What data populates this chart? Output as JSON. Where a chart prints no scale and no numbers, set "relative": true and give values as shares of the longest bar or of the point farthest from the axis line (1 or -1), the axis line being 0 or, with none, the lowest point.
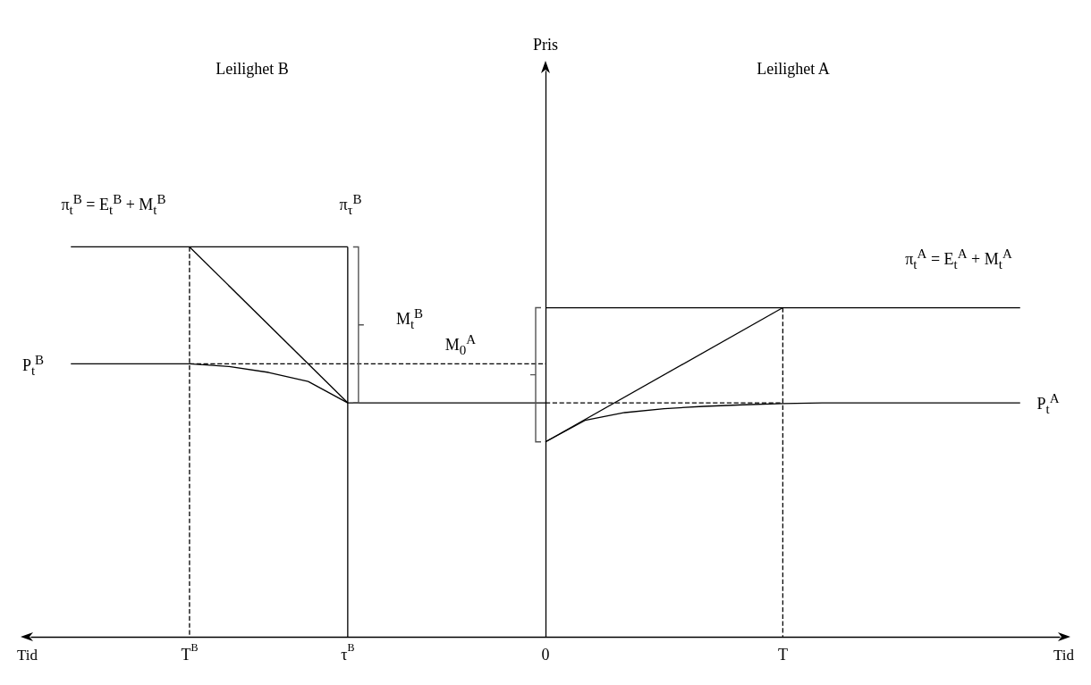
{
  "chart_data": {
    "type": "line",
    "relative": true,
    "xlabel": "Tid",
    "marker": "none",
    "categories": [
      null,
      null,
      null,
      null,
      "T$^{B}$",
      null,
      null,
      null,
      "τ$^{B}$",
      null,
      null,
      null,
      null,
      "0",
      null,
      null,
      null,
      null,
      null,
      "T",
      null,
      null,
      null,
      null,
      null,
      null,
      null
    ],
    "series": [
      {
        "color": "#000000",
        "line_style": "solid",
        "values": [
          null,
          1,
          1,
          1,
          1,
          1,
          1,
          1,
          1,
          null,
          null,
          null,
          null,
          null,
          null,
          null,
          null,
          null,
          null,
          null,
          null,
          null,
          null,
          null,
          null,
          null,
          null
        ]
      },
      {
        "color": "#000000",
        "line_style": "solid",
        "x": [
          "τ$^{B}$",
          "τ$^{B}$"
        ],
        "values": [
          1,
          0
        ]
      },
      {
        "color": "#000000",
        "line_style": "solid",
        "x": [
          "T$^{B}$",
          "τ$^{B}$"
        ],
        "values": [
          1,
          0.6
        ]
      },
      {
        "color": "#000000",
        "line_style": "dashed",
        "x": [
          "T$^{B}$",
          "T$^{B}$"
        ],
        "values": [
          1,
          0
        ]
      },
      {
        "color": "#000000",
        "line_style": "solid",
        "values": [
          null,
          0.7,
          0.7,
          0.7,
          0.7,
          0.693,
          0.678,
          0.655,
          0.6,
          0.6,
          0.6,
          0.6,
          0.6,
          0.6,
          null,
          null,
          null,
          null,
          null,
          null,
          null,
          null,
          null,
          null,
          null,
          null,
          null
        ]
      },
      {
        "color": "#000000",
        "line_style": "dashed",
        "values": [
          null,
          null,
          null,
          null,
          0.7,
          0.7,
          0.7,
          0.7,
          0.7,
          0.7,
          0.7,
          0.7,
          0.7,
          0.7,
          null,
          null,
          null,
          null,
          null,
          null,
          null,
          null,
          null,
          null,
          null,
          null,
          null
        ]
      },
      {
        "color": "#000000",
        "line_style": "solid",
        "values": [
          null,
          null,
          null,
          null,
          null,
          null,
          null,
          null,
          null,
          null,
          null,
          null,
          null,
          0.844,
          0.844,
          0.844,
          0.844,
          0.844,
          0.844,
          0.844,
          0.844,
          0.844,
          0.844,
          0.844,
          0.844,
          0.844,
          null
        ]
      },
      {
        "color": "#000000",
        "line_style": "solid",
        "values": [
          null,
          null,
          null,
          null,
          null,
          null,
          null,
          null,
          null,
          null,
          null,
          null,
          null,
          0.5,
          0.555,
          0.575,
          0.585,
          0.591,
          0.595,
          0.598,
          0.6,
          0.6,
          0.6,
          0.6,
          0.6,
          0.6,
          null
        ]
      },
      {
        "color": "#000000",
        "line_style": "solid",
        "x": [
          "0",
          "T"
        ],
        "values": [
          0.5,
          0.844
        ]
      },
      {
        "color": "#000000",
        "line_style": "dashed",
        "x": [
          "T",
          "T"
        ],
        "values": [
          0.844,
          0
        ]
      },
      {
        "color": "#000000",
        "line_style": "dashed",
        "values": [
          null,
          null,
          null,
          null,
          null,
          null,
          null,
          null,
          null,
          null,
          null,
          null,
          null,
          0.6,
          0.6,
          0.6,
          0.6,
          0.6,
          0.6,
          0.6,
          null,
          null,
          null,
          null,
          null,
          null,
          null
        ]
      }
    ],
    "annotations": [
      "Leilighet B",
      "Leilighet A",
      "π$_{t}$$^{B}$ = E$_{t}$$^{B}$ + M$_{t}$$^{B}$",
      "π$_{τ}$$^{B}$",
      "M$_{t}$$^{B}$",
      "P$_{t}$$^{B}$",
      "M$_{0}$$^{A}$",
      "π$_{t}$$^{A}$ = E$_{t}$$^{A}$ + M$_{t}$$^{A}$",
      "P$_{t}$$^{A}$",
      "Pris"
    ]
  }
}
